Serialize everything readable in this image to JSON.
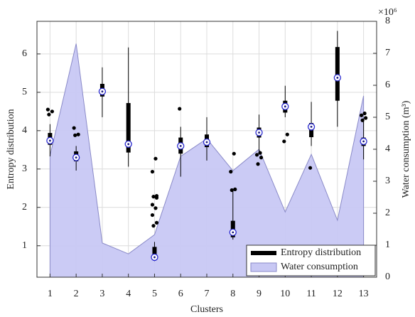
{
  "chart_data": {
    "type": "box_area",
    "xlabel": "Clusters",
    "ylabel": "Entropy distribution",
    "y2label": "Water consumption (m³)",
    "y2_exponent": "×10⁶",
    "x": [
      1,
      2,
      3,
      4,
      5,
      6,
      7,
      8,
      9,
      10,
      11,
      12,
      13
    ],
    "xlim": [
      0.5,
      13.5
    ],
    "xticks": [
      1,
      2,
      3,
      4,
      5,
      6,
      7,
      8,
      9,
      10,
      11,
      12,
      13
    ],
    "ylim": [
      0.18,
      6.85
    ],
    "yticks": [
      1,
      2,
      3,
      4,
      5,
      6
    ],
    "y2lim": [
      0,
      8
    ],
    "y2ticks": [
      0,
      1,
      2,
      3,
      4,
      5,
      6,
      7,
      8
    ],
    "grid": true,
    "legend": "lower right",
    "series": [
      {
        "name": "Entropy distribution",
        "color": "#000000",
        "boxes": [
          {
            "whislo": 3.33,
            "q1": 3.63,
            "med": 3.74,
            "q3": 3.94,
            "whishi": 4.17,
            "fliers": [
              4.42,
              4.5,
              4.55
            ]
          },
          {
            "whislo": 2.96,
            "q1": 3.2,
            "med": 3.3,
            "q3": 3.46,
            "whishi": 3.6,
            "fliers": [
              3.88,
              3.9,
              4.07
            ]
          },
          {
            "whislo": 4.35,
            "q1": 4.89,
            "med": 5.02,
            "q3": 5.22,
            "whishi": 5.65,
            "fliers": []
          },
          {
            "whislo": 3.06,
            "q1": 3.43,
            "med": 3.65,
            "q3": 4.72,
            "whishi": 6.17,
            "fliers": []
          },
          {
            "whislo": 0.6,
            "q1": 0.7,
            "med": 0.7,
            "q3": 0.97,
            "whishi": 1.1,
            "fliers": [
              1.52,
              1.6,
              1.8,
              1.98,
              2.07,
              2.25,
              2.28,
              2.3,
              2.93,
              3.27
            ]
          },
          {
            "whislo": 2.8,
            "q1": 3.4,
            "med": 3.6,
            "q3": 3.82,
            "whishi": 4.1,
            "fliers": [
              4.57
            ]
          },
          {
            "whislo": 3.22,
            "q1": 3.57,
            "med": 3.7,
            "q3": 3.9,
            "whishi": 4.35,
            "fliers": []
          },
          {
            "whislo": 1.16,
            "q1": 1.22,
            "med": 1.35,
            "q3": 1.65,
            "whishi": 2.45,
            "fliers": [
              2.45,
              2.47,
              2.93,
              3.4
            ]
          },
          {
            "whislo": 3.45,
            "q1": 3.82,
            "med": 3.95,
            "q3": 4.08,
            "whishi": 4.42,
            "fliers": [
              3.13,
              3.3,
              3.37,
              3.42
            ]
          },
          {
            "whislo": 4.35,
            "q1": 4.47,
            "med": 4.63,
            "q3": 4.78,
            "whishi": 5.17,
            "fliers": [
              3.72,
              3.9
            ]
          },
          {
            "whislo": 3.6,
            "q1": 3.83,
            "med": 4.1,
            "q3": 4.2,
            "whishi": 4.75,
            "fliers": [
              3.03
            ]
          },
          {
            "whislo": 4.1,
            "q1": 4.78,
            "med": 5.38,
            "q3": 6.18,
            "whishi": 6.6,
            "fliers": []
          },
          {
            "whislo": 3.25,
            "q1": 3.6,
            "med": 3.72,
            "q3": 3.82,
            "whishi": 4.32,
            "fliers": [
              4.27,
              4.33,
              4.4,
              4.45
            ]
          }
        ]
      },
      {
        "name": "Water consumption",
        "color": "#c8c8f4",
        "axis": "y2",
        "values": [
          3.8,
          7.3,
          1.07,
          0.73,
          1.33,
          3.78,
          4.33,
          3.33,
          4.0,
          2.04,
          3.84,
          1.78,
          5.67
        ]
      }
    ]
  }
}
